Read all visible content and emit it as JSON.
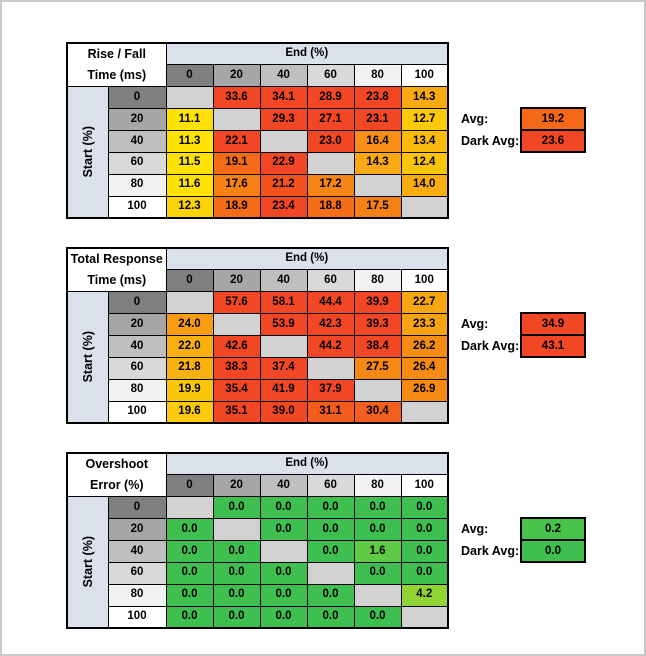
{
  "palette": {
    "band_fill": "#DAE1EB",
    "blank_cell": "#D2D2D2",
    "grid_border": "#000000",
    "header_gradient": [
      "#7F7F7F",
      "#A6A6A6",
      "#BFBFBF",
      "#D9D9D9",
      "#F2F2F2",
      "#FFFFFF"
    ]
  },
  "tables": [
    {
      "title_line1": "Rise / Fall",
      "title_line2": "Time (ms)",
      "col_axis_label": "End (%)",
      "row_axis_label": "Start (%)",
      "col_headers": [
        "0",
        "20",
        "40",
        "60",
        "80",
        "100"
      ],
      "row_headers": [
        "0",
        "20",
        "40",
        "60",
        "80",
        "100"
      ],
      "cells": [
        [
          {
            "v": "",
            "c": "#D2D2D2"
          },
          {
            "v": "33.6",
            "c": "#F24724"
          },
          {
            "v": "34.1",
            "c": "#F24724"
          },
          {
            "v": "28.9",
            "c": "#F24724"
          },
          {
            "v": "23.8",
            "c": "#F24724"
          },
          {
            "v": "14.3",
            "c": "#F9A913"
          }
        ],
        [
          {
            "v": "11.1",
            "c": "#FFE205"
          },
          {
            "v": "",
            "c": "#D2D2D2"
          },
          {
            "v": "29.3",
            "c": "#F24724"
          },
          {
            "v": "27.1",
            "c": "#F24724"
          },
          {
            "v": "23.1",
            "c": "#F24724"
          },
          {
            "v": "12.7",
            "c": "#FCCA0B"
          }
        ],
        [
          {
            "v": "11.3",
            "c": "#FFE205"
          },
          {
            "v": "22.1",
            "c": "#F24724"
          },
          {
            "v": "",
            "c": "#D2D2D2"
          },
          {
            "v": "23.0",
            "c": "#F24724"
          },
          {
            "v": "16.4",
            "c": "#F78E17"
          },
          {
            "v": "13.4",
            "c": "#FBBB0E"
          }
        ],
        [
          {
            "v": "11.5",
            "c": "#FFE205"
          },
          {
            "v": "19.1",
            "c": "#F56C18"
          },
          {
            "v": "22.9",
            "c": "#F24724"
          },
          {
            "v": "",
            "c": "#D2D2D2"
          },
          {
            "v": "14.3",
            "c": "#F9A913"
          },
          {
            "v": "12.4",
            "c": "#FBC40C"
          }
        ],
        [
          {
            "v": "11.6",
            "c": "#FFE205"
          },
          {
            "v": "17.6",
            "c": "#F68117"
          },
          {
            "v": "21.2",
            "c": "#F3521F"
          },
          {
            "v": "17.2",
            "c": "#F68517"
          },
          {
            "v": "",
            "c": "#D2D2D2"
          },
          {
            "v": "14.0",
            "c": "#F9AD12"
          }
        ],
        [
          {
            "v": "12.3",
            "c": "#FCD208"
          },
          {
            "v": "18.9",
            "c": "#F56C18"
          },
          {
            "v": "23.4",
            "c": "#F24724"
          },
          {
            "v": "18.8",
            "c": "#F56E18"
          },
          {
            "v": "17.5",
            "c": "#F68117"
          },
          {
            "v": "",
            "c": "#D2D2D2"
          }
        ]
      ],
      "avg_label": "Avg:",
      "dark_avg_label": "Dark Avg:",
      "avg_value": "19.2",
      "avg_color": "#F56819",
      "dark_avg_value": "23.6",
      "dark_avg_color": "#F24724"
    },
    {
      "title_line1": "Total Response",
      "title_line2": "Time (ms)",
      "col_axis_label": "End (%)",
      "row_axis_label": "Start (%)",
      "col_headers": [
        "0",
        "20",
        "40",
        "60",
        "80",
        "100"
      ],
      "row_headers": [
        "0",
        "20",
        "40",
        "60",
        "80",
        "100"
      ],
      "cells": [
        [
          {
            "v": "",
            "c": "#D2D2D2"
          },
          {
            "v": "57.6",
            "c": "#F24724"
          },
          {
            "v": "58.1",
            "c": "#F24724"
          },
          {
            "v": "44.4",
            "c": "#F24724"
          },
          {
            "v": "39.9",
            "c": "#F24724"
          },
          {
            "v": "22.7",
            "c": "#F8A512"
          }
        ],
        [
          {
            "v": "24.0",
            "c": "#F89C14"
          },
          {
            "v": "",
            "c": "#D2D2D2"
          },
          {
            "v": "53.9",
            "c": "#F24724"
          },
          {
            "v": "42.3",
            "c": "#F24724"
          },
          {
            "v": "39.3",
            "c": "#F24724"
          },
          {
            "v": "23.3",
            "c": "#F8A313"
          }
        ],
        [
          {
            "v": "22.0",
            "c": "#F9AF10"
          },
          {
            "v": "42.6",
            "c": "#F24724"
          },
          {
            "v": "",
            "c": "#D2D2D2"
          },
          {
            "v": "44.2",
            "c": "#F24724"
          },
          {
            "v": "38.4",
            "c": "#F24724"
          },
          {
            "v": "26.2",
            "c": "#F78C15"
          }
        ],
        [
          {
            "v": "21.8",
            "c": "#F9B010"
          },
          {
            "v": "38.3",
            "c": "#F24724"
          },
          {
            "v": "37.4",
            "c": "#F24724"
          },
          {
            "v": "",
            "c": "#D2D2D2"
          },
          {
            "v": "27.5",
            "c": "#F68816"
          },
          {
            "v": "26.4",
            "c": "#F78C15"
          }
        ],
        [
          {
            "v": "19.9",
            "c": "#FBC70A"
          },
          {
            "v": "35.4",
            "c": "#F24724"
          },
          {
            "v": "41.9",
            "c": "#F24724"
          },
          {
            "v": "37.9",
            "c": "#F24724"
          },
          {
            "v": "",
            "c": "#D2D2D2"
          },
          {
            "v": "26.9",
            "c": "#F78A15"
          }
        ],
        [
          {
            "v": "19.6",
            "c": "#FBCA0A"
          },
          {
            "v": "35.1",
            "c": "#F24724"
          },
          {
            "v": "39.0",
            "c": "#F24724"
          },
          {
            "v": "31.1",
            "c": "#F45C1E"
          },
          {
            "v": "30.4",
            "c": "#F45F1E"
          },
          {
            "v": "",
            "c": "#D2D2D2"
          }
        ]
      ],
      "avg_label": "Avg:",
      "dark_avg_label": "Dark Avg:",
      "avg_value": "34.9",
      "avg_color": "#F24724",
      "dark_avg_value": "43.1",
      "dark_avg_color": "#F24724"
    },
    {
      "title_line1": "Overshoot",
      "title_line2": "Error (%)",
      "col_axis_label": "End (%)",
      "row_axis_label": "Start (%)",
      "col_headers": [
        "0",
        "20",
        "40",
        "60",
        "80",
        "100"
      ],
      "row_headers": [
        "0",
        "20",
        "40",
        "60",
        "80",
        "100"
      ],
      "cells": [
        [
          {
            "v": "",
            "c": "#D2D2D2"
          },
          {
            "v": "0.0",
            "c": "#3FBF4F"
          },
          {
            "v": "0.0",
            "c": "#3FBF4F"
          },
          {
            "v": "0.0",
            "c": "#3FBF4F"
          },
          {
            "v": "0.0",
            "c": "#3FBF4F"
          },
          {
            "v": "0.0",
            "c": "#3FBF4F"
          }
        ],
        [
          {
            "v": "0.0",
            "c": "#3FBF4F"
          },
          {
            "v": "",
            "c": "#D2D2D2"
          },
          {
            "v": "0.0",
            "c": "#3FBF4F"
          },
          {
            "v": "0.0",
            "c": "#3FBF4F"
          },
          {
            "v": "0.0",
            "c": "#3FBF4F"
          },
          {
            "v": "0.0",
            "c": "#3FBF4F"
          }
        ],
        [
          {
            "v": "0.0",
            "c": "#3FBF4F"
          },
          {
            "v": "0.0",
            "c": "#3FBF4F"
          },
          {
            "v": "",
            "c": "#D2D2D2"
          },
          {
            "v": "0.0",
            "c": "#3FBF4F"
          },
          {
            "v": "1.6",
            "c": "#5FCB45"
          },
          {
            "v": "0.0",
            "c": "#3FBF4F"
          }
        ],
        [
          {
            "v": "0.0",
            "c": "#3FBF4F"
          },
          {
            "v": "0.0",
            "c": "#3FBF4F"
          },
          {
            "v": "0.0",
            "c": "#3FBF4F"
          },
          {
            "v": "",
            "c": "#D2D2D2"
          },
          {
            "v": "0.0",
            "c": "#3FBF4F"
          },
          {
            "v": "0.0",
            "c": "#3FBF4F"
          }
        ],
        [
          {
            "v": "0.0",
            "c": "#3FBF4F"
          },
          {
            "v": "0.0",
            "c": "#3FBF4F"
          },
          {
            "v": "0.0",
            "c": "#3FBF4F"
          },
          {
            "v": "0.0",
            "c": "#3FBF4F"
          },
          {
            "v": "",
            "c": "#D2D2D2"
          },
          {
            "v": "4.2",
            "c": "#90D434"
          }
        ],
        [
          {
            "v": "0.0",
            "c": "#3FBF4F"
          },
          {
            "v": "0.0",
            "c": "#3FBF4F"
          },
          {
            "v": "0.0",
            "c": "#3FBF4F"
          },
          {
            "v": "0.0",
            "c": "#3FBF4F"
          },
          {
            "v": "0.0",
            "c": "#3FBF4F"
          },
          {
            "v": "",
            "c": "#D2D2D2"
          }
        ]
      ],
      "avg_label": "Avg:",
      "dark_avg_label": "Dark Avg:",
      "avg_value": "0.2",
      "avg_color": "#48C34C",
      "dark_avg_value": "0.0",
      "dark_avg_color": "#3FBF4F"
    }
  ]
}
